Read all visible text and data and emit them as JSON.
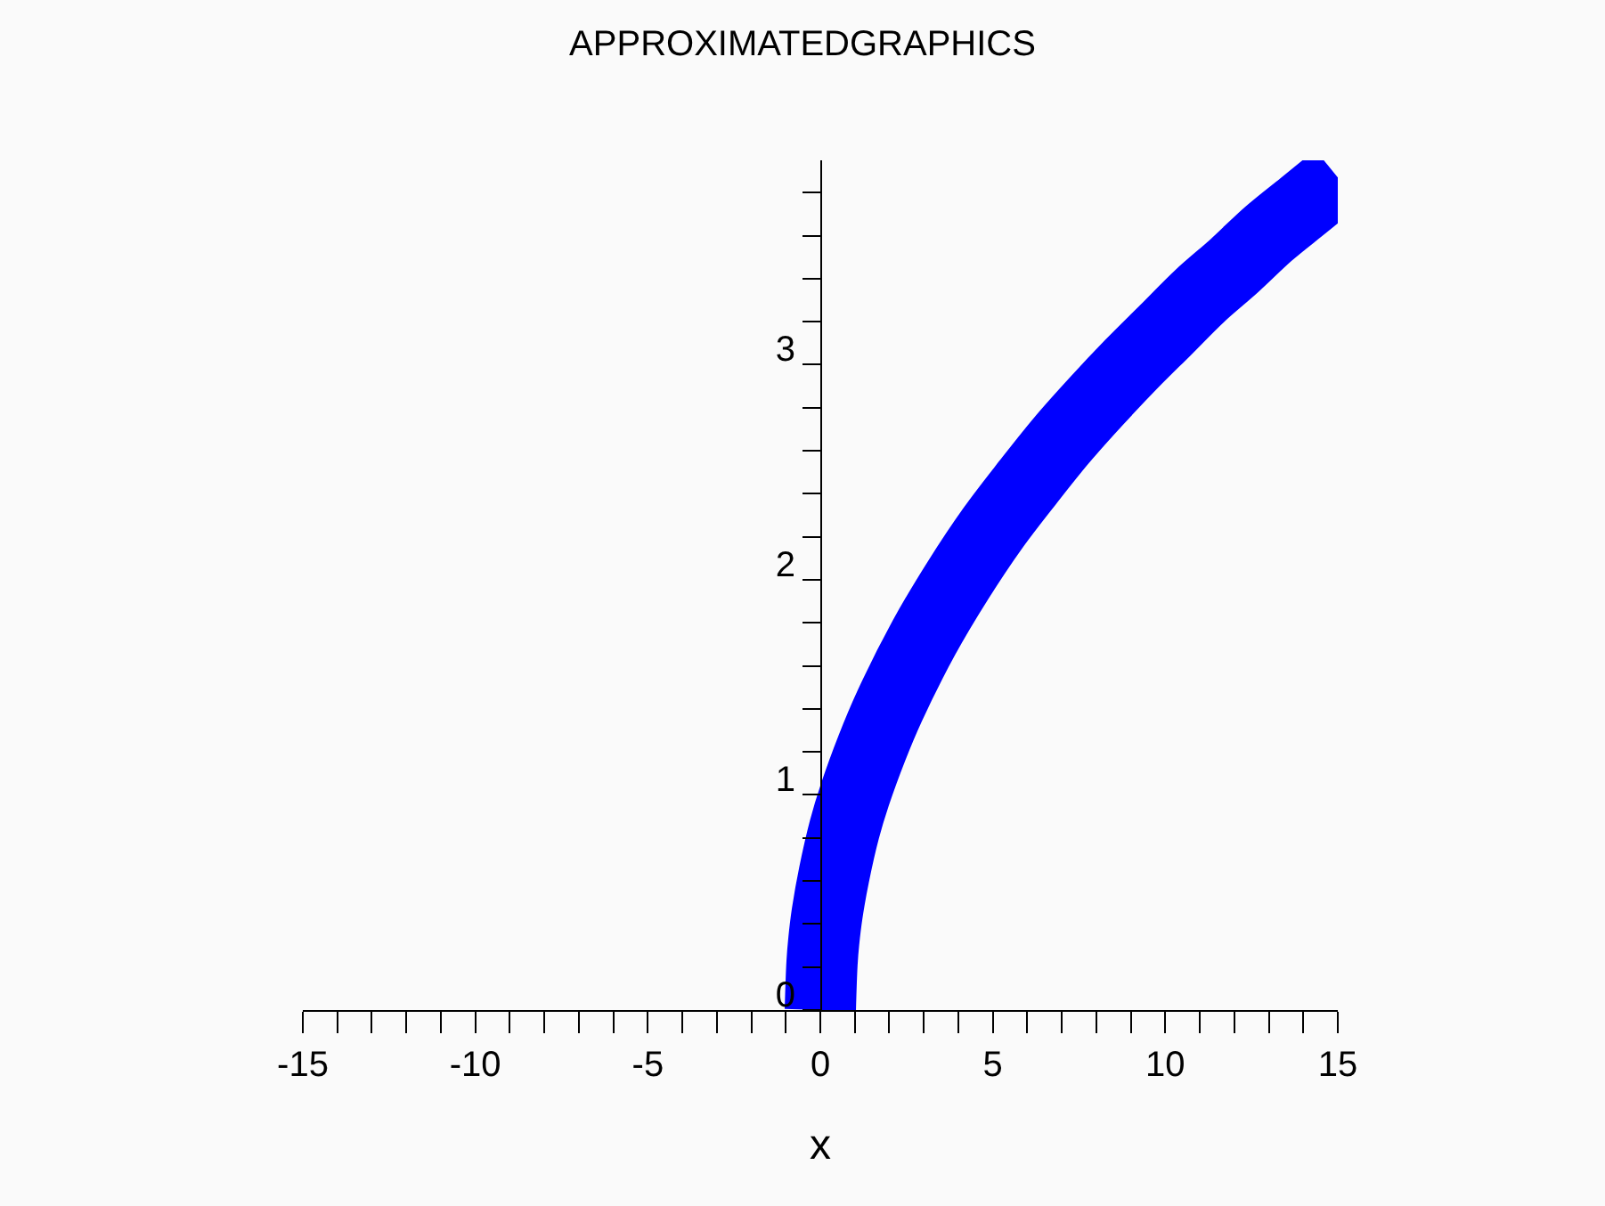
{
  "chart_data": {
    "type": "line",
    "title": "APPROXIMATEDGRAPHICS",
    "xlabel": "x",
    "x": [
      0,
      0.05,
      0.1,
      0.2,
      0.4,
      0.7,
      1,
      1.5,
      2,
      3,
      4,
      5,
      6,
      7,
      8,
      9,
      10,
      11,
      12,
      13,
      14,
      15
    ],
    "series": [
      {
        "color": "#0000ff",
        "values": [
          0,
          0.22,
          0.32,
          0.45,
          0.63,
          0.84,
          1.0,
          1.22,
          1.41,
          1.73,
          2.0,
          2.24,
          2.45,
          2.65,
          2.83,
          3.0,
          3.16,
          3.32,
          3.46,
          3.61,
          3.74,
          3.87
        ]
      }
    ],
    "xlim": [
      -15,
      15
    ],
    "ylim": [
      0,
      3.95
    ],
    "xticks": [
      -15,
      {
        "value": -14,
        "label": null
      },
      {
        "value": -13,
        "label": null
      },
      {
        "value": -12,
        "label": null
      },
      {
        "value": -11,
        "label": null
      },
      -10,
      {
        "value": -9,
        "label": null
      },
      {
        "value": -8,
        "label": null
      },
      {
        "value": -7,
        "label": null
      },
      {
        "value": -6,
        "label": null
      },
      -5,
      {
        "value": -4,
        "label": null
      },
      {
        "value": -3,
        "label": null
      },
      {
        "value": -2,
        "label": null
      },
      {
        "value": -1,
        "label": null
      },
      0,
      {
        "value": 1,
        "label": null
      },
      {
        "value": 2,
        "label": null
      },
      {
        "value": 3,
        "label": null
      },
      {
        "value": 4,
        "label": null
      },
      5,
      {
        "value": 6,
        "label": null
      },
      {
        "value": 7,
        "label": null
      },
      {
        "value": 8,
        "label": null
      },
      {
        "value": 9,
        "label": null
      },
      10,
      {
        "value": 11,
        "label": null
      },
      {
        "value": 12,
        "label": null
      },
      {
        "value": 13,
        "label": null
      },
      {
        "value": 14,
        "label": null
      },
      15
    ],
    "yticks": [
      0,
      {
        "value": 0.2,
        "label": null
      },
      {
        "value": 0.4,
        "label": null
      },
      {
        "value": 0.6,
        "label": null
      },
      {
        "value": 0.8,
        "label": null
      },
      1,
      {
        "value": 1.2,
        "label": null
      },
      {
        "value": 1.4,
        "label": null
      },
      {
        "value": 1.6,
        "label": null
      },
      {
        "value": 1.8,
        "label": null
      },
      2,
      {
        "value": 2.2,
        "label": null
      },
      {
        "value": 2.4,
        "label": null
      },
      {
        "value": 2.6,
        "label": null
      },
      {
        "value": 2.8,
        "label": null
      },
      3,
      {
        "value": 3.2,
        "label": null
      },
      {
        "value": 3.4,
        "label": null
      },
      {
        "value": 3.6,
        "label": null
      },
      {
        "value": 3.8,
        "label": null
      }
    ],
    "marker": "none",
    "line_style": "solid"
  }
}
